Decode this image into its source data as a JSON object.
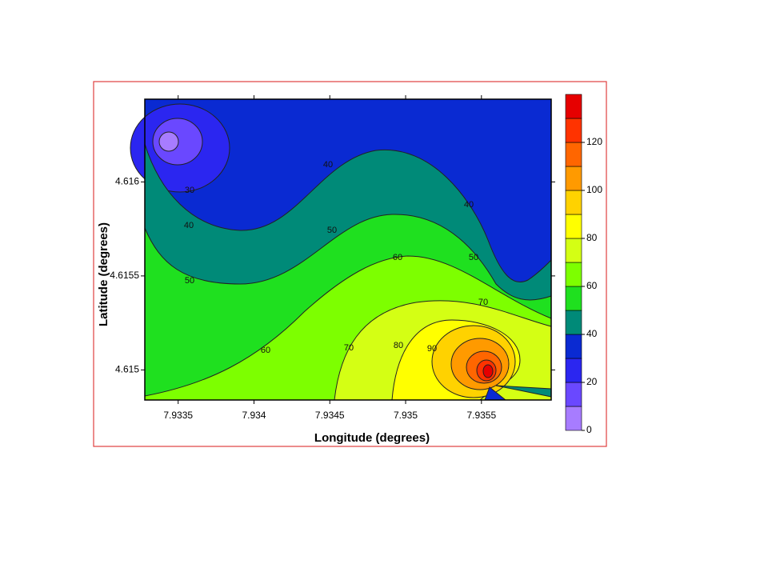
{
  "chart_data": {
    "type": "contour",
    "xlabel": "Longitude   (degrees)",
    "ylabel": "Latitude (degrees)",
    "xlim": [
      7.93328,
      7.93596
    ],
    "ylim": [
      4.61484,
      4.61644
    ],
    "xticks": [
      7.9335,
      7.934,
      7.9345,
      7.935,
      7.9355
    ],
    "yticks": [
      4.615,
      4.6155,
      4.616
    ],
    "colorbar": {
      "levels": [
        0,
        10,
        20,
        30,
        40,
        50,
        60,
        70,
        80,
        90,
        100,
        110,
        120,
        130,
        140
      ],
      "colors": [
        "#a77cff",
        "#6a48ff",
        "#2b26f0",
        "#0a2ad2",
        "#008a78",
        "#1fe01f",
        "#7dff00",
        "#d4ff14",
        "#ffff00",
        "#ffd200",
        "#ff9a00",
        "#ff6600",
        "#ff3300",
        "#e60000"
      ],
      "ticks": [
        0,
        20,
        40,
        60,
        80,
        100,
        120
      ]
    },
    "contour_labels": [
      30,
      40,
      40,
      40,
      50,
      50,
      50,
      60,
      70,
      60,
      70,
      80,
      90
    ]
  }
}
